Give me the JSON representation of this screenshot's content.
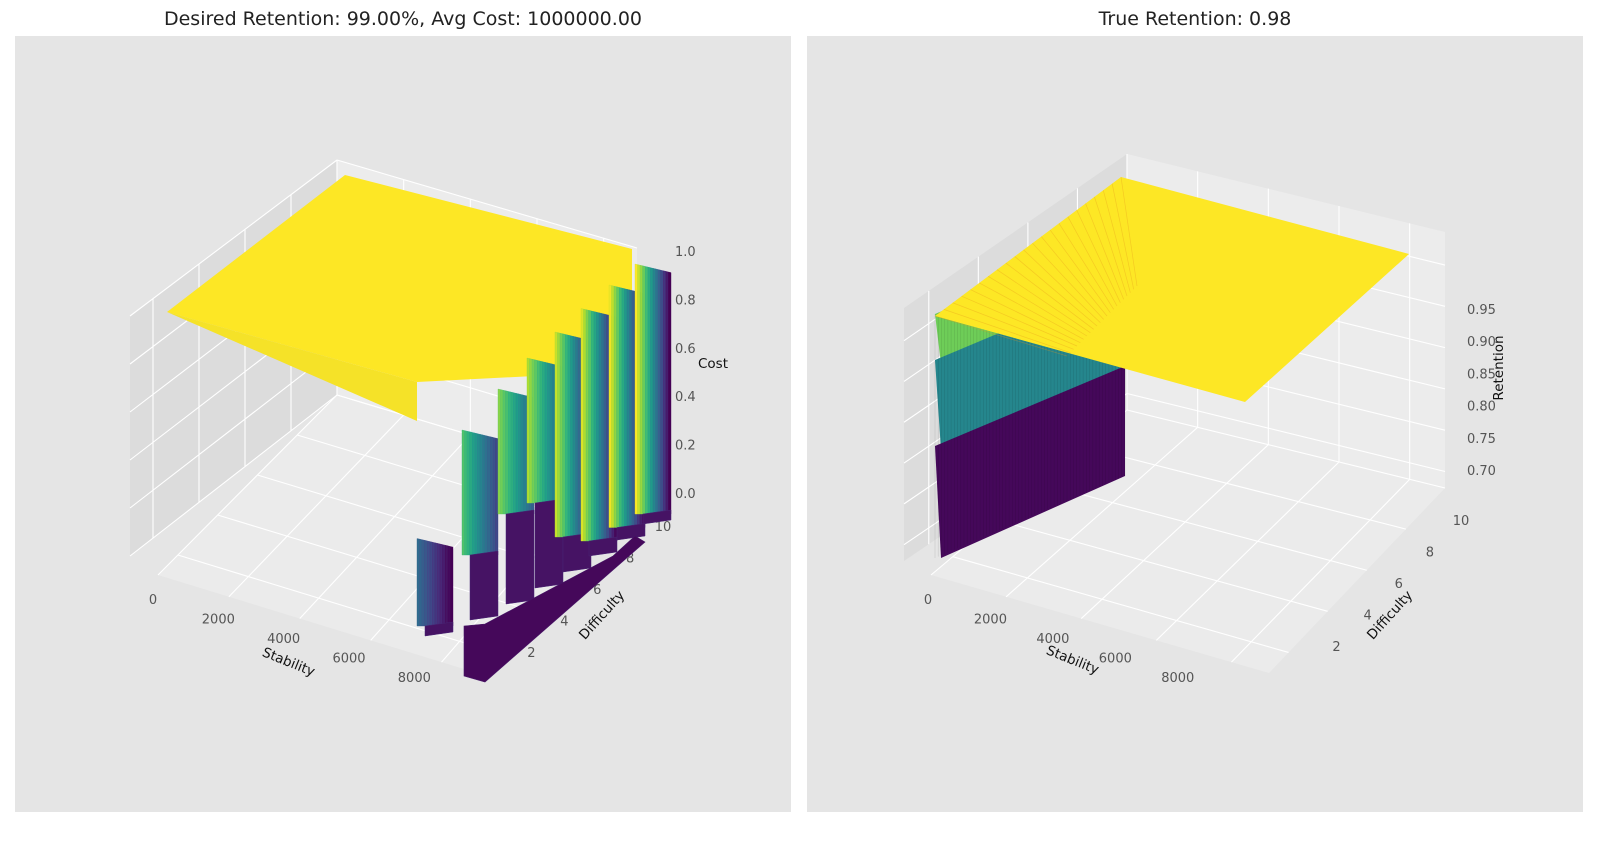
{
  "chart_data": [
    {
      "type": "surface3d",
      "title": "Desired Retention: 99.00%, Avg Cost: 1000000.00",
      "xlabel": "Stability",
      "ylabel": "Difficulty",
      "zlabel": "Cost",
      "xlim": [
        0,
        9000
      ],
      "ylim": [
        1,
        10
      ],
      "zlim": [
        0,
        1
      ],
      "x_ticks": [
        0,
        2000,
        4000,
        6000,
        8000
      ],
      "y_ticks": [
        2,
        4,
        6,
        8,
        10
      ],
      "z_ticks": [
        "0.0",
        "0.2",
        "0.4",
        "0.6",
        "0.8",
        "1.0"
      ],
      "colormap": "viridis",
      "plateau_value": 1.0,
      "stability_transition": [
        {
          "difficulty": 1,
          "stability": 8800
        },
        {
          "difficulty": 10,
          "stability": 7400
        }
      ],
      "steps": [
        {
          "difficulty": 1.0,
          "low": 0.0,
          "high": 0.35
        },
        {
          "difficulty": 2.2,
          "low": 0.22,
          "high": 0.72
        },
        {
          "difficulty": 3.5,
          "low": 0.32,
          "high": 0.82
        },
        {
          "difficulty": 4.8,
          "low": 0.3,
          "high": 0.88
        },
        {
          "difficulty": 6.1,
          "low": 0.1,
          "high": 0.92
        },
        {
          "difficulty": 7.4,
          "low": 0.02,
          "high": 0.95
        },
        {
          "difficulty": 8.6,
          "low": 0.01,
          "high": 0.98
        },
        {
          "difficulty": 10.0,
          "low": 0.0,
          "high": 1.0
        }
      ]
    },
    {
      "type": "surface3d",
      "title": "True Retention: 0.98",
      "xlabel": "Stability",
      "ylabel": "Difficulty",
      "zlabel": "Retention",
      "xlim": [
        0,
        9000
      ],
      "ylim": [
        1,
        10
      ],
      "zlim": [
        0.68,
        0.99
      ],
      "x_ticks": [
        0,
        2000,
        4000,
        6000,
        8000
      ],
      "y_ticks": [
        2,
        4,
        6,
        8,
        10
      ],
      "z_ticks": [
        "0.70",
        "0.75",
        "0.80",
        "0.85",
        "0.90",
        "0.95"
      ],
      "colormap": "viridis",
      "plateau_value": 0.99,
      "low_stability_edge": {
        "stability": 0,
        "retention_min": 0.7,
        "retention_max": 0.99
      }
    }
  ]
}
